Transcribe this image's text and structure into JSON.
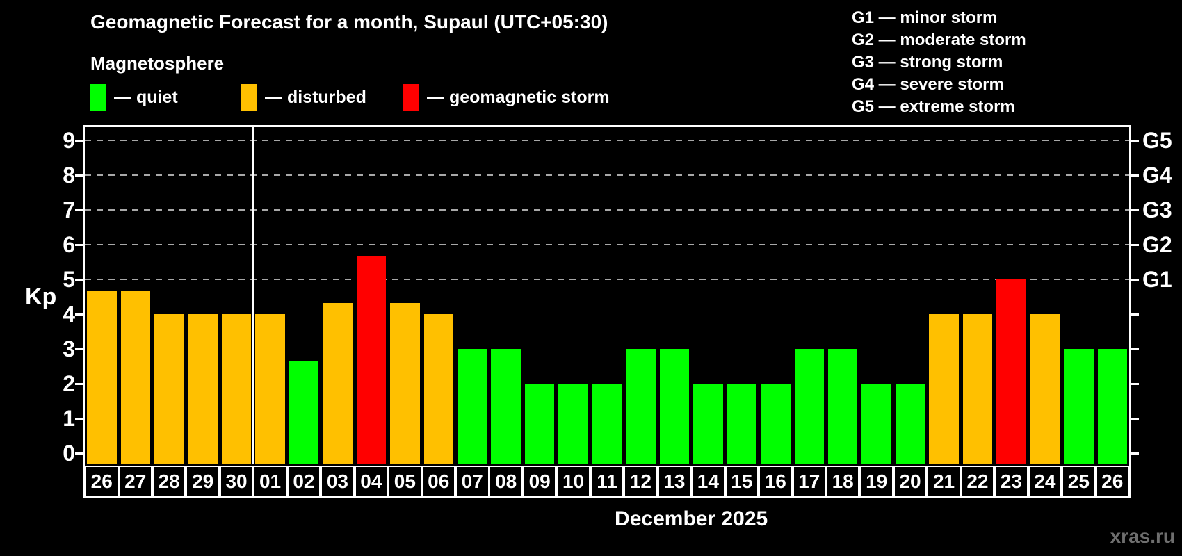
{
  "header": {
    "title": "Geomagnetic Forecast for a month, Supaul (UTC+05:30)",
    "subtitle": "Magnetosphere"
  },
  "colors": {
    "quiet": "#00ff00",
    "disturbed": "#ffc000",
    "storm": "#ff0000",
    "axis": "#ffffff",
    "grid": "#a8a8a8",
    "background": "#000000",
    "watermark": "#6e6e6e"
  },
  "legend": {
    "items": [
      {
        "key": "quiet",
        "label": "— quiet"
      },
      {
        "key": "disturbed",
        "label": "— disturbed"
      },
      {
        "key": "storm",
        "label": "— geomagnetic storm"
      }
    ]
  },
  "storm_scale_legend": {
    "items": [
      "G1 — minor storm",
      "G2 — moderate storm",
      "G3 — strong storm",
      "G4 — severe storm",
      "G5 — extreme storm"
    ]
  },
  "chart_data": {
    "type": "bar",
    "title": "Geomagnetic Forecast for a month, Supaul (UTC+05:30)",
    "ylabel": "Kp",
    "xlabel": "December 2025",
    "ylim": [
      0,
      9
    ],
    "yticks": [
      0,
      1,
      2,
      3,
      4,
      5,
      6,
      7,
      8,
      9
    ],
    "gridlines_at_kp": [
      5,
      6,
      7,
      8,
      9
    ],
    "grid_style": "dashed-horizontal",
    "right_axis": [
      {
        "kp": 5,
        "label": "G1"
      },
      {
        "kp": 6,
        "label": "G2"
      },
      {
        "kp": 7,
        "label": "G3"
      },
      {
        "kp": 8,
        "label": "G4"
      },
      {
        "kp": 9,
        "label": "G5"
      }
    ],
    "month_separator_after_index": 4,
    "categories": [
      "26",
      "27",
      "28",
      "29",
      "30",
      "01",
      "02",
      "03",
      "04",
      "05",
      "06",
      "07",
      "08",
      "09",
      "10",
      "11",
      "12",
      "13",
      "14",
      "15",
      "16",
      "17",
      "18",
      "19",
      "20",
      "21",
      "22",
      "23",
      "24",
      "25",
      "26"
    ],
    "values": [
      4.67,
      4.67,
      4,
      4,
      4,
      4,
      2.67,
      4.33,
      5.67,
      4.33,
      4,
      3,
      3,
      2,
      2,
      2,
      3,
      3,
      2,
      2,
      2,
      3,
      3,
      2,
      2,
      4,
      4,
      5,
      4,
      3,
      3
    ],
    "levels": [
      "disturbed",
      "disturbed",
      "disturbed",
      "disturbed",
      "disturbed",
      "disturbed",
      "quiet",
      "disturbed",
      "storm",
      "disturbed",
      "disturbed",
      "quiet",
      "quiet",
      "quiet",
      "quiet",
      "quiet",
      "quiet",
      "quiet",
      "quiet",
      "quiet",
      "quiet",
      "quiet",
      "quiet",
      "quiet",
      "quiet",
      "disturbed",
      "disturbed",
      "storm",
      "disturbed",
      "quiet",
      "quiet"
    ]
  },
  "footer": {
    "caption": "December 2025",
    "watermark": "xras.ru"
  }
}
